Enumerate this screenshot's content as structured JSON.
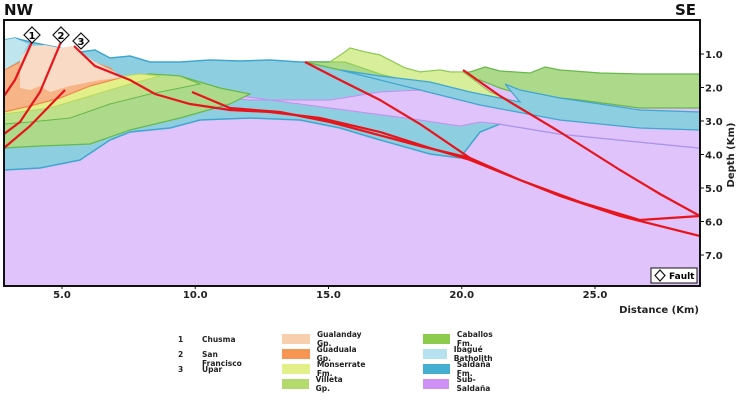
{
  "directions": {
    "left": "NW",
    "right": "SE"
  },
  "x_axis": {
    "title": "Distance (Km)",
    "ticks": [
      "5.0",
      "10.0",
      "15.0",
      "20.0",
      "25.0"
    ],
    "tick_values": [
      5,
      10,
      15,
      20,
      25
    ]
  },
  "y_axis": {
    "title": "Depth (Km)",
    "ticks": [
      "1.0",
      "2.0",
      "3.0",
      "4.0",
      "5.0",
      "6.0",
      "7.0"
    ],
    "tick_values": [
      1,
      2,
      3,
      4,
      5,
      6,
      7
    ]
  },
  "fault_labels": [
    "1",
    "2",
    "3"
  ],
  "fault_legend": "Fault",
  "fault_names": [
    {
      "num": "1",
      "name": "Chusma"
    },
    {
      "num": "2",
      "name": "San Francisco"
    },
    {
      "num": "3",
      "name": "Upar"
    }
  ],
  "units": [
    {
      "name": "Gualanday Gp.",
      "color": "#f8cfae"
    },
    {
      "name": "Guaduala Gp.",
      "color": "#f79552"
    },
    {
      "name": "Monserrate Fm.",
      "color": "#e3f08a"
    },
    {
      "name": "Villeta Gp.",
      "color": "#b4da6e"
    },
    {
      "name": "Caballos Fm.",
      "color": "#8ccb4e"
    },
    {
      "name": "Ibagué Batholith",
      "color": "#b5e2ee"
    },
    {
      "name": "Saldaña Fm.",
      "color": "#43aed0"
    },
    {
      "name": "Sub-Saldaña",
      "color": "#cf8ff5"
    }
  ],
  "colors": {
    "fault": "#e8141c",
    "sub_saldana_fill": "#e0c3fb",
    "saldana_fill": "#8dcfe0",
    "caballos_fill": "#acd98a",
    "monserrate_fill": "#d9ee9a",
    "gualanday_fill": "#f9dbc5",
    "guaduala_fill": "#f7b487",
    "ibague_fill": "#bfe6ef"
  }
}
